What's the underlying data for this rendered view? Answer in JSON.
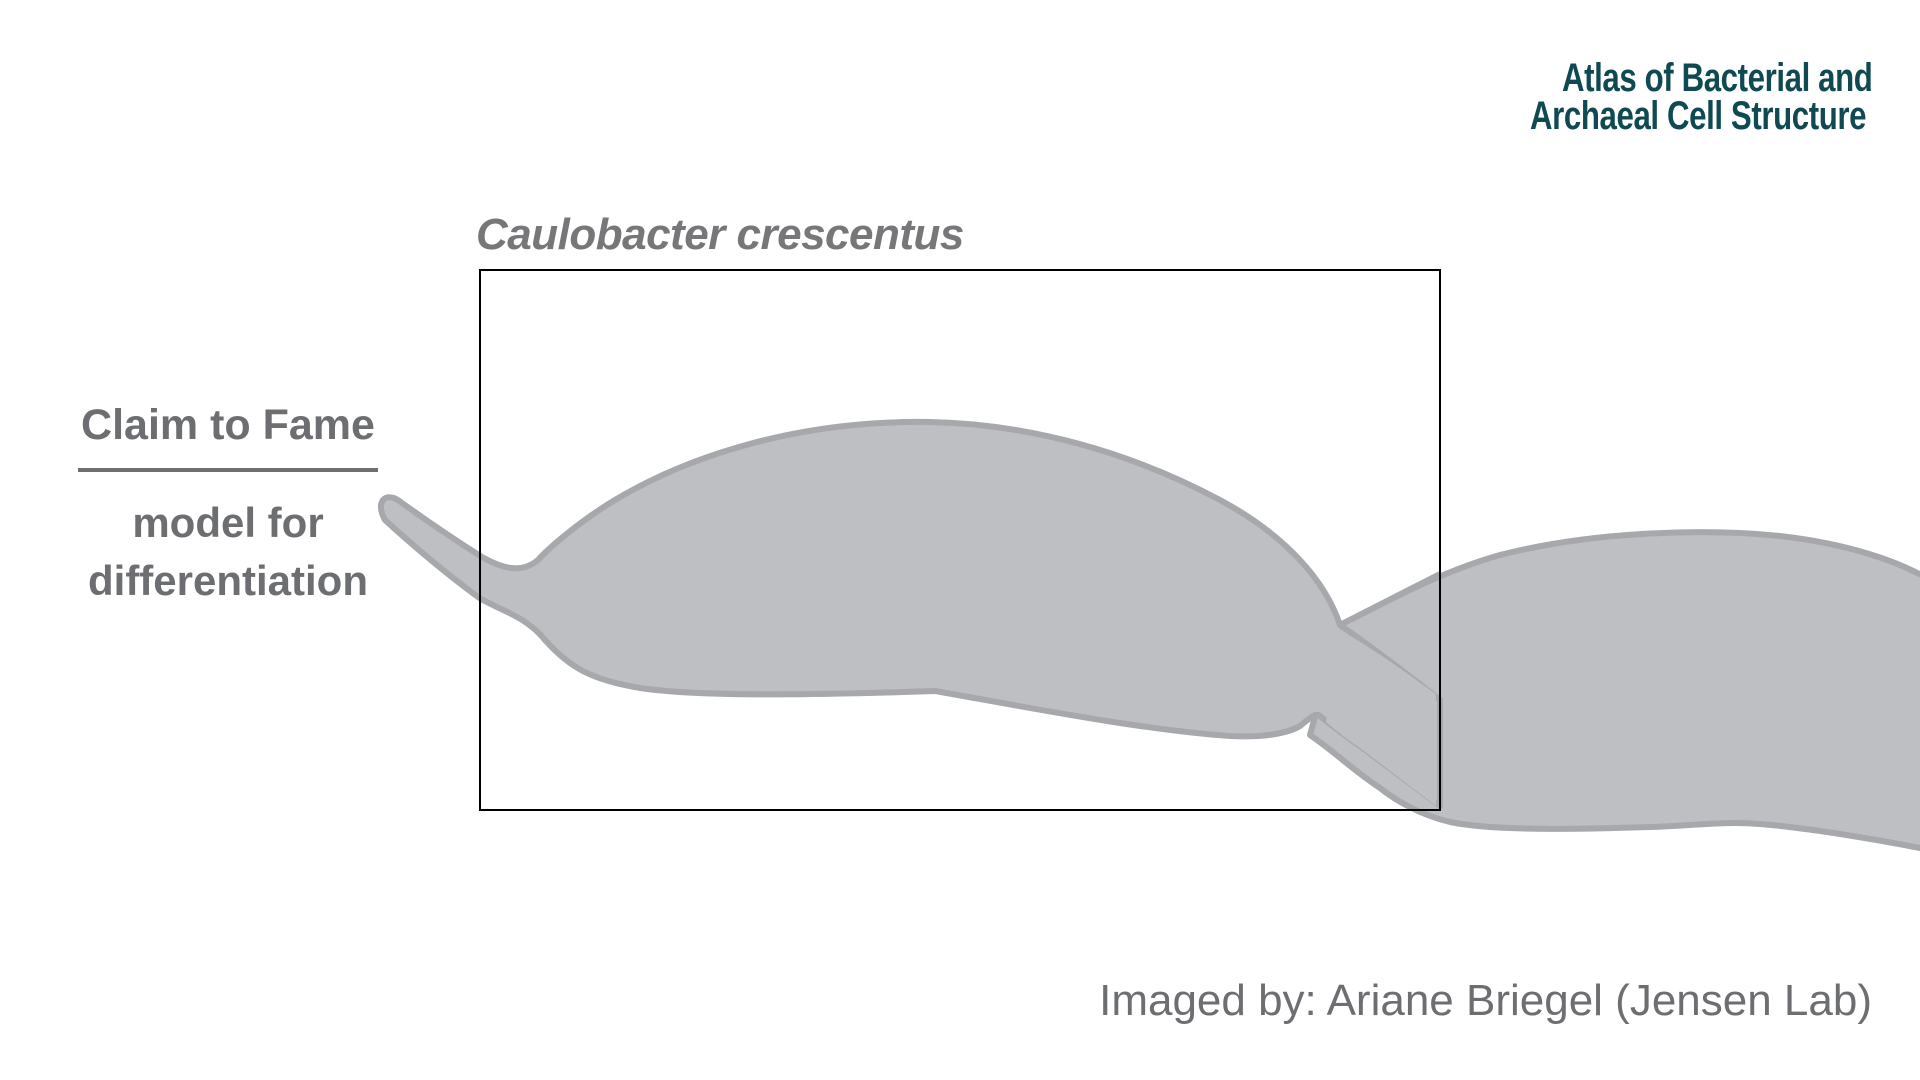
{
  "logo": {
    "line1": "Atlas of Bacterial and",
    "line2": "Archaeal Cell Structure"
  },
  "species_title": "Caulobacter crescentus",
  "claim": {
    "heading": "Claim to Fame",
    "text": "model for differentiation"
  },
  "credit": "Imaged by: Ariane Briegel (Jensen Lab)",
  "colors": {
    "cell_fill": "#bebfc3",
    "cell_stroke": "#a7a8ac",
    "text_gray": "#6d6e71",
    "logo_teal": "#0f4a52",
    "box_stroke": "#000000"
  }
}
